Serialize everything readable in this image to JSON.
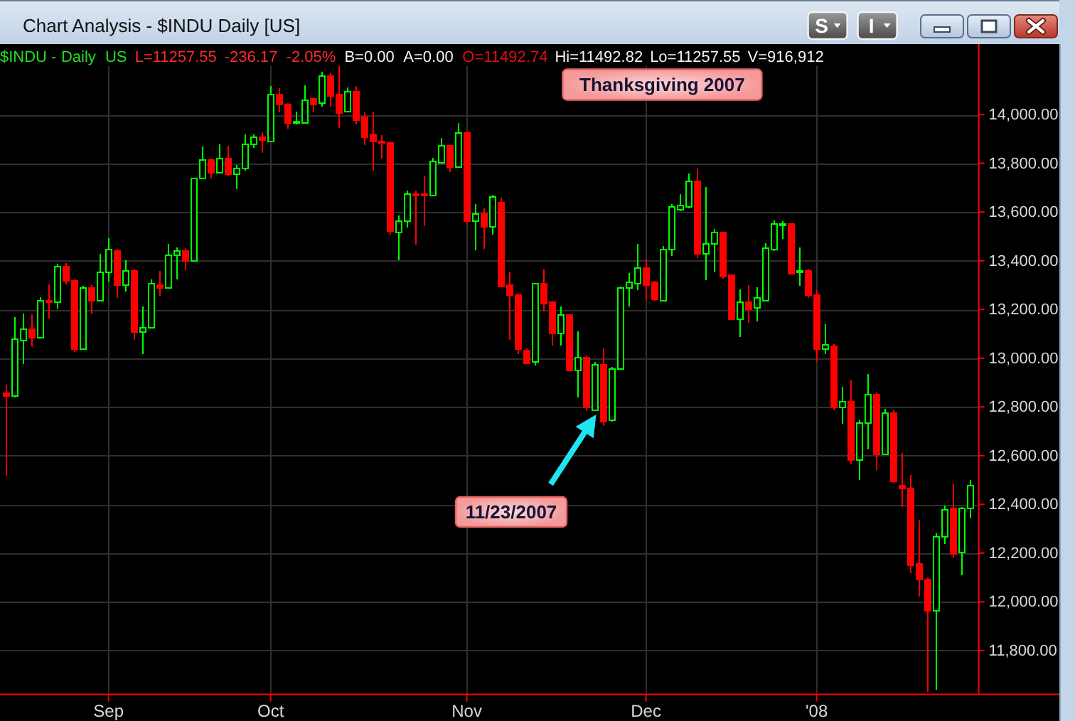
{
  "chart_data": {
    "type": "candlestick",
    "title": "Chart Analysis - $INDU Daily [US]",
    "subtitle": "$INDU - Daily US L=11257.55 -236.17 -2.05% B=0.00 A=0.00 O=11492.74 Hi=11492.82 Lo=11257.55 V=916,912",
    "categories": [
      null,
      null,
      null,
      null,
      null,
      null,
      null,
      null,
      null,
      null,
      null,
      null,
      "Sep",
      null,
      null,
      null,
      null,
      null,
      null,
      null,
      null,
      null,
      null,
      null,
      null,
      null,
      null,
      null,
      null,
      null,
      null,
      "Oct",
      null,
      null,
      null,
      null,
      null,
      null,
      null,
      null,
      null,
      null,
      null,
      null,
      null,
      null,
      null,
      null,
      null,
      null,
      null,
      null,
      null,
      null,
      "Nov",
      null,
      null,
      null,
      null,
      null,
      null,
      null,
      null,
      null,
      null,
      null,
      null,
      null,
      null,
      null,
      null,
      null,
      null,
      null,
      null,
      "Dec",
      null,
      null,
      null,
      null,
      null,
      null,
      null,
      null,
      null,
      null,
      null,
      null,
      null,
      null,
      null,
      null,
      null,
      null,
      null,
      "'08",
      null,
      null,
      null,
      null,
      null,
      null,
      null,
      null,
      null,
      null,
      null,
      null,
      null,
      null,
      null,
      null,
      null,
      null
    ],
    "ohlc": [
      [
        12861,
        12890,
        12518,
        12846
      ],
      [
        12845,
        13168,
        12840,
        13080
      ],
      [
        13077,
        13183,
        12977,
        13119
      ],
      [
        13121,
        13181,
        13047,
        13087
      ],
      [
        13085,
        13249,
        13080,
        13236
      ],
      [
        13238,
        13302,
        13164,
        13235
      ],
      [
        13234,
        13387,
        13203,
        13378
      ],
      [
        13378,
        13391,
        13304,
        13322
      ],
      [
        13319,
        13322,
        13026,
        13041
      ],
      [
        13041,
        13298,
        13035,
        13290
      ],
      [
        13290,
        13300,
        13181,
        13236
      ],
      [
        13240,
        13428,
        13235,
        13358
      ],
      [
        13358,
        13492,
        13314,
        13448
      ],
      [
        13442,
        13448,
        13246,
        13305
      ],
      [
        13305,
        13401,
        13273,
        13363
      ],
      [
        13360,
        13363,
        13076,
        13113
      ],
      [
        13112,
        13211,
        13018,
        13127
      ],
      [
        13129,
        13323,
        13125,
        13307
      ],
      [
        13303,
        13358,
        13257,
        13291
      ],
      [
        13294,
        13469,
        13290,
        13423
      ],
      [
        13423,
        13455,
        13323,
        13441
      ],
      [
        13441,
        13453,
        13362,
        13403
      ],
      [
        13403,
        13740,
        13400,
        13739
      ],
      [
        13739,
        13868,
        13735,
        13815
      ],
      [
        13815,
        13818,
        13739,
        13766
      ],
      [
        13766,
        13877,
        13760,
        13821
      ],
      [
        13820,
        13873,
        13747,
        13759
      ],
      [
        13759,
        13794,
        13695,
        13779
      ],
      [
        13779,
        13920,
        13770,
        13878
      ],
      [
        13878,
        13920,
        13862,
        13912
      ],
      [
        13912,
        13926,
        13842,
        13896
      ],
      [
        13895,
        14118,
        13890,
        14087
      ],
      [
        14087,
        14107,
        14008,
        14045
      ],
      [
        14044,
        14046,
        13943,
        13969
      ],
      [
        13968,
        14013,
        13960,
        13974
      ],
      [
        13971,
        14120,
        13965,
        14063
      ],
      [
        14066,
        14070,
        14008,
        14046
      ],
      [
        14048,
        14175,
        14033,
        14163
      ],
      [
        14163,
        14170,
        14033,
        14078
      ],
      [
        14083,
        14198,
        13945,
        14012
      ],
      [
        14013,
        14111,
        14008,
        14094
      ],
      [
        14094,
        14116,
        13959,
        13980
      ],
      [
        13990,
        14010,
        13875,
        13908
      ],
      [
        13922,
        14013,
        13770,
        13891
      ],
      [
        13891,
        13916,
        13819,
        13888
      ],
      [
        13888,
        13890,
        13508,
        13522
      ],
      [
        13520,
        13586,
        13401,
        13567
      ],
      [
        13566,
        13687,
        13537,
        13675
      ],
      [
        13676,
        13687,
        13465,
        13671
      ],
      [
        13675,
        13745,
        13543,
        13671
      ],
      [
        13673,
        13823,
        13670,
        13809
      ],
      [
        13807,
        13903,
        13800,
        13873
      ],
      [
        13873,
        13875,
        13765,
        13788
      ],
      [
        13790,
        13965,
        13785,
        13930
      ],
      [
        13926,
        13930,
        13549,
        13564
      ],
      [
        13566,
        13634,
        13444,
        13592
      ],
      [
        13595,
        13615,
        13450,
        13541
      ],
      [
        13540,
        13671,
        13508,
        13663
      ],
      [
        13644,
        13660,
        13295,
        13298
      ],
      [
        13302,
        13356,
        13076,
        13262
      ],
      [
        13261,
        13265,
        13016,
        13041
      ],
      [
        13037,
        13040,
        12980,
        12983
      ],
      [
        12985,
        13310,
        12970,
        13307
      ],
      [
        13308,
        13366,
        13191,
        13226
      ],
      [
        13232,
        13235,
        13051,
        13106
      ],
      [
        13106,
        13211,
        13051,
        13179
      ],
      [
        13179,
        13180,
        12950,
        12954
      ],
      [
        12955,
        13109,
        12839,
        13008
      ],
      [
        13008,
        13012,
        12783,
        12799
      ],
      [
        12792,
        12985,
        12790,
        12977
      ],
      [
        12977,
        13041,
        12722,
        12742
      ],
      [
        12746,
        12965,
        12740,
        12958
      ],
      [
        12958,
        13295,
        12955,
        13289
      ],
      [
        13290,
        13349,
        13211,
        13312
      ],
      [
        13310,
        13469,
        13279,
        13372
      ],
      [
        13372,
        13407,
        13240,
        13304
      ],
      [
        13314,
        13318,
        13236,
        13246
      ],
      [
        13240,
        13459,
        13235,
        13446
      ],
      [
        13446,
        13634,
        13420,
        13621
      ],
      [
        13615,
        13673,
        13603,
        13630
      ],
      [
        13621,
        13757,
        13615,
        13728
      ],
      [
        13728,
        13780,
        13411,
        13430
      ],
      [
        13430,
        13702,
        13321,
        13475
      ],
      [
        13475,
        13531,
        13352,
        13518
      ],
      [
        13518,
        13520,
        13327,
        13337
      ],
      [
        13343,
        13345,
        13158,
        13162
      ],
      [
        13162,
        13281,
        13088,
        13230
      ],
      [
        13232,
        13300,
        13144,
        13203
      ],
      [
        13207,
        13290,
        13152,
        13249
      ],
      [
        13240,
        13473,
        13235,
        13454
      ],
      [
        13448,
        13566,
        13440,
        13551
      ],
      [
        13550,
        13562,
        13489,
        13553
      ],
      [
        13553,
        13555,
        13343,
        13352
      ],
      [
        13358,
        13454,
        13298,
        13360
      ],
      [
        13364,
        13368,
        13246,
        13261
      ],
      [
        13261,
        13279,
        12989,
        13041
      ],
      [
        13041,
        13139,
        13018,
        13057
      ],
      [
        13050,
        13058,
        12785,
        12800
      ],
      [
        12800,
        12882,
        12732,
        12827
      ],
      [
        12823,
        12909,
        12563,
        12586
      ],
      [
        12586,
        12745,
        12499,
        12734
      ],
      [
        12734,
        12934,
        12627,
        12851
      ],
      [
        12851,
        12860,
        12542,
        12606
      ],
      [
        12609,
        12793,
        12605,
        12775
      ],
      [
        12775,
        12785,
        12490,
        12499
      ],
      [
        12479,
        12612,
        12388,
        12466
      ],
      [
        12466,
        12520,
        12119,
        12154
      ],
      [
        12158,
        12338,
        12022,
        12096
      ],
      [
        12094,
        12100,
        11630,
        11966
      ],
      [
        11966,
        12280,
        11640,
        12268
      ],
      [
        12268,
        12396,
        12238,
        12378
      ],
      [
        12388,
        12485,
        12180,
        12199
      ],
      [
        12203,
        12388,
        12110,
        12384
      ],
      [
        12384,
        12501,
        12343,
        12479
      ]
    ],
    "colors": [
      "#ff0000",
      "#00ff00",
      "#00ff00",
      "#ff0000",
      "#00ff00",
      "#ff0000",
      "#00ff00",
      "#ff0000",
      "#ff0000",
      "#00ff00",
      "#ff0000",
      "#00ff00",
      "#00ff00",
      "#ff0000",
      "#00ff00",
      "#ff0000",
      "#00ff00",
      "#00ff00",
      "#ff0000",
      "#00ff00",
      "#00ff00",
      "#ff0000",
      "#00ff00",
      "#00ff00",
      "#ff0000",
      "#00ff00",
      "#ff0000",
      "#00ff00",
      "#00ff00",
      "#00ff00",
      "#ff0000",
      "#00ff00",
      "#ff0000",
      "#ff0000",
      "#00ff00",
      "#00ff00",
      "#ff0000",
      "#00ff00",
      "#ff0000",
      "#ff0000",
      "#00ff00",
      "#ff0000",
      "#ff0000",
      "#ff0000",
      "#ff0000",
      "#ff0000",
      "#00ff00",
      "#00ff00",
      "#ff0000",
      "#ff0000",
      "#00ff00",
      "#00ff00",
      "#ff0000",
      "#00ff00",
      "#ff0000",
      "#00ff00",
      "#ff0000",
      "#00ff00",
      "#ff0000",
      "#ff0000",
      "#ff0000",
      "#ff0000",
      "#00ff00",
      "#ff0000",
      "#ff0000",
      "#00ff00",
      "#ff0000",
      "#00ff00",
      "#ff0000",
      "#00ff00",
      "#ff0000",
      "#00ff00",
      "#00ff00",
      "#00ff00",
      "#00ff00",
      "#ff0000",
      "#ff0000",
      "#00ff00",
      "#00ff00",
      "#00ff00",
      "#00ff00",
      "#ff0000",
      "#00ff00",
      "#00ff00",
      "#ff0000",
      "#ff0000",
      "#00ff00",
      "#ff0000",
      "#00ff00",
      "#00ff00",
      "#00ff00",
      "#00ff00",
      "#ff0000",
      "#00ff00",
      "#ff0000",
      "#ff0000",
      "#00ff00",
      "#ff0000",
      "#00ff00",
      "#ff0000",
      "#00ff00",
      "#00ff00",
      "#ff0000",
      "#00ff00",
      "#ff0000",
      "#ff0000",
      "#ff0000",
      "#ff0000",
      "#ff0000",
      "#00ff00",
      "#00ff00",
      "#ff0000",
      "#00ff00",
      "#00ff00"
    ],
    "ylim": [
      11620,
      14200
    ],
    "yticks": [
      {
        "value": 11800,
        "label": "11,800.00"
      },
      {
        "value": 12000,
        "label": "12,000.00"
      },
      {
        "value": 12200,
        "label": "12,200.00"
      },
      {
        "value": 12400,
        "label": "12,400.00"
      },
      {
        "value": 12600,
        "label": "12,600.00"
      },
      {
        "value": 12800,
        "label": "12,800.00"
      },
      {
        "value": 13000,
        "label": "13,000.00"
      },
      {
        "value": 13200,
        "label": "13,200.00"
      },
      {
        "value": 13400,
        "label": "13,400.00"
      },
      {
        "value": 13600,
        "label": "13,600.00"
      },
      {
        "value": 13800,
        "label": "13,800.00"
      },
      {
        "value": 14000,
        "label": "14,000.00"
      }
    ],
    "grid": true,
    "annotations": [
      "Thanksgiving 2007",
      "11/23/2007",
      "S",
      "I"
    ]
  }
}
